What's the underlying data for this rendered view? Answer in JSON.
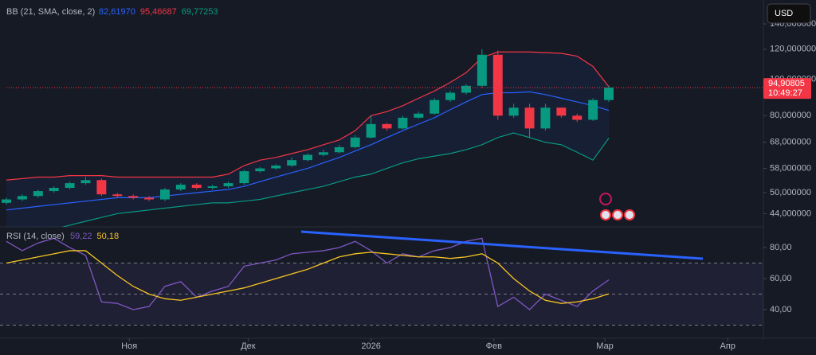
{
  "chart_data": [
    {
      "type": "candlestick",
      "title": "BB (21, SMA, close, 2)",
      "currency": "USD",
      "log_scale": true,
      "x": [
        0,
        4,
        8,
        12,
        16,
        20,
        24,
        28,
        32,
        36,
        40,
        44,
        48,
        52,
        56,
        60,
        64,
        68,
        72,
        76,
        80,
        84,
        88,
        92,
        96,
        100,
        104,
        108,
        112,
        116,
        120,
        124,
        128,
        132,
        136,
        140,
        144,
        148,
        152
      ],
      "open": [
        47,
        48,
        49,
        50.5,
        51.5,
        53,
        54,
        49.5,
        49,
        48.5,
        48,
        51,
        52.5,
        51.5,
        52,
        53,
        57,
        58,
        59,
        61,
        63,
        64,
        66,
        70,
        76,
        74,
        79,
        81,
        88,
        92,
        96,
        116,
        80,
        84,
        74,
        84,
        80,
        78,
        88
      ],
      "high": [
        48.5,
        49.5,
        51,
        52,
        53.5,
        55,
        54.5,
        50,
        49.5,
        49,
        51.5,
        53,
        53,
        52.5,
        53.5,
        57.5,
        58.5,
        59.5,
        62,
        63.5,
        65,
        67,
        71,
        80,
        76.5,
        80,
        82,
        89,
        93,
        97,
        120,
        119,
        86,
        86,
        86,
        84,
        81,
        89,
        96
      ],
      "low": [
        46.5,
        47.5,
        48.5,
        50,
        51,
        52.5,
        49,
        48.5,
        48,
        47.5,
        47.5,
        50.5,
        51,
        51,
        51.5,
        52.5,
        56.5,
        57.5,
        58.5,
        60.5,
        62.5,
        63.5,
        65.5,
        69.5,
        73,
        73.5,
        78.5,
        80.5,
        87,
        91,
        95,
        78,
        79,
        70,
        73,
        79,
        77,
        77.5,
        87
      ],
      "close": [
        48,
        49,
        50.5,
        51.5,
        53,
        54,
        49.5,
        49,
        48.5,
        48,
        51,
        52.5,
        51.5,
        52,
        53,
        57,
        58,
        59,
        61,
        63,
        64,
        66,
        70,
        76,
        74,
        79,
        81,
        88,
        92,
        96,
        116,
        80,
        84,
        74,
        84,
        80,
        78,
        88,
        94.90805
      ],
      "up_color": "#089981",
      "down_color": "#f23645",
      "series": [
        {
          "color": "#2962ff",
          "legend_label": {
            "value": 82.6197,
            "label": "82,61970"
          },
          "values": [
            45,
            45.5,
            46,
            46.5,
            47,
            47.5,
            48,
            48.5,
            48.5,
            48.5,
            49,
            49.5,
            50,
            50.5,
            51,
            52,
            53.5,
            55,
            56.5,
            58,
            60,
            62,
            64.5,
            67,
            70,
            73,
            76,
            79,
            83,
            87,
            91,
            92,
            92,
            92.5,
            91,
            89,
            87,
            85,
            82.6197
          ]
        },
        {
          "color": "#f23645",
          "legend_label": {
            "value": 95.46687,
            "label": "95,46687"
          },
          "values": [
            54,
            54.5,
            55,
            55,
            55.5,
            55.5,
            55.5,
            55,
            55,
            55,
            55,
            55,
            55,
            55,
            56,
            59,
            61,
            62,
            63.5,
            65,
            67,
            69,
            73,
            80,
            82,
            85,
            89,
            93,
            98,
            104,
            114,
            118,
            118,
            118,
            117.5,
            117,
            115,
            108,
            95.46687
          ]
        },
        {
          "color": "#089981",
          "legend_label": {
            "value": 69.77253,
            "label": "69,77253"
          },
          "values": [
            38,
            38.5,
            39,
            40,
            41,
            42,
            43,
            44,
            44.5,
            45,
            45.5,
            46,
            46.5,
            47,
            47,
            47.5,
            48,
            49,
            50,
            51,
            52,
            53.5,
            55,
            56,
            58,
            60,
            61.5,
            62.5,
            63.5,
            65,
            67,
            70,
            72,
            70,
            68,
            67,
            64,
            61,
            69.77253
          ]
        }
      ],
      "last_price": {
        "value": 94.90805,
        "label": "94,90805"
      },
      "last_time": "10:49:27",
      "xlim": [
        0,
        191
      ],
      "ylim": [
        40.6,
        162
      ],
      "yticks": [
        {
          "value": 140,
          "label": "140,000000"
        },
        {
          "value": 120,
          "label": "120,000000"
        },
        {
          "value": 100,
          "label": "100,000000"
        },
        {
          "value": 80,
          "label": "80,000000"
        },
        {
          "value": 68,
          "label": "68,000000"
        },
        {
          "value": 58,
          "label": "58,000000"
        },
        {
          "value": 50,
          "label": "50,000000"
        },
        {
          "value": 44,
          "label": "44,000000"
        }
      ]
    },
    {
      "type": "line",
      "title": "RSI (14, close)",
      "x": [
        0,
        4,
        8,
        12,
        16,
        20,
        24,
        28,
        32,
        36,
        40,
        44,
        48,
        52,
        56,
        60,
        64,
        68,
        72,
        76,
        80,
        84,
        88,
        92,
        96,
        100,
        104,
        108,
        112,
        116,
        120,
        124,
        128,
        132,
        136,
        140,
        144,
        148,
        152
      ],
      "series": [
        {
          "color": "#7e57c2",
          "legend_label": {
            "value": 59.22,
            "label": "59,22"
          },
          "values": [
            84,
            78,
            83,
            86,
            80,
            75,
            45,
            44,
            40,
            42,
            55,
            58,
            48,
            52,
            55,
            68,
            70,
            72,
            76,
            77,
            78,
            80,
            84,
            78,
            70,
            76,
            74,
            78,
            80,
            84,
            86,
            42,
            48,
            40,
            50,
            46,
            42,
            52,
            59.22
          ]
        },
        {
          "color": "#f7c521",
          "legend_label": {
            "value": 50.18,
            "label": "50,18"
          },
          "values": [
            70,
            72,
            74,
            76,
            78,
            78,
            70,
            62,
            55,
            50,
            47,
            46,
            48,
            50,
            52,
            54,
            57,
            60,
            63,
            66,
            70,
            74,
            76,
            77,
            76,
            75,
            74,
            74,
            73,
            74,
            76,
            70,
            60,
            52,
            46,
            44,
            45,
            47,
            50.18
          ]
        }
      ],
      "levels": [
        70,
        50,
        30
      ],
      "xlim": [
        0,
        191
      ],
      "ylim": [
        21.5,
        90.8
      ],
      "yticks": [
        {
          "value": 80,
          "label": "80,00"
        },
        {
          "value": 60,
          "label": "60,00"
        },
        {
          "value": 40,
          "label": "40,00"
        }
      ],
      "xticks": [
        {
          "value": 31,
          "label": "Ноя"
        },
        {
          "value": 61,
          "label": "Дек"
        },
        {
          "value": 92,
          "label": "2026"
        },
        {
          "value": 123,
          "label": "Фев"
        },
        {
          "value": 151,
          "label": "Мар"
        },
        {
          "value": 182,
          "label": "Апр"
        }
      ]
    }
  ]
}
